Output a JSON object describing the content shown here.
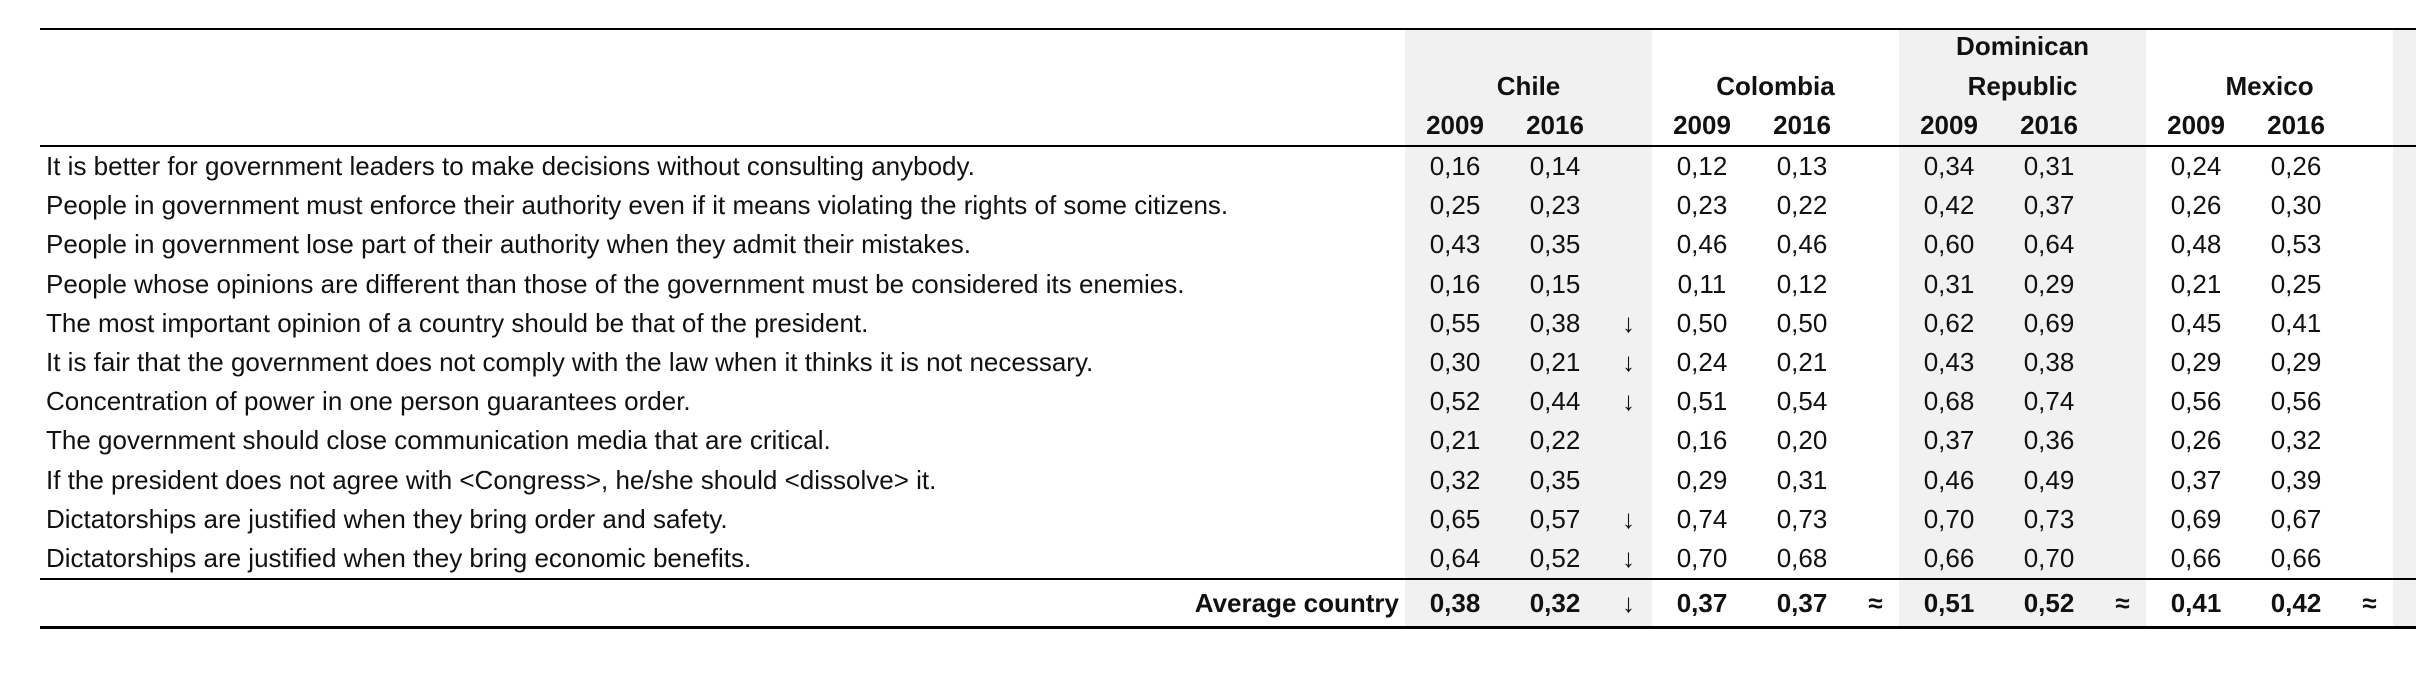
{
  "countries": {
    "chile": "Chile",
    "colombia": "Colombia",
    "dr_line1": "Dominican",
    "dr_line2": "Republic",
    "mexico": "Mexico"
  },
  "years": [
    "2009",
    "2016"
  ],
  "rows": [
    {
      "label": "It is better for government leaders to make decisions without consulting anybody.",
      "chile": [
        "0,16",
        "0,14",
        ""
      ],
      "colombia": [
        "0,12",
        "0,13",
        ""
      ],
      "dominican_republic": [
        "0,34",
        "0,31",
        ""
      ],
      "mexico": [
        "0,24",
        "0,26",
        ""
      ]
    },
    {
      "label": "People in government must enforce their authority even if it means violating the rights of some citizens.",
      "chile": [
        "0,25",
        "0,23",
        ""
      ],
      "colombia": [
        "0,23",
        "0,22",
        ""
      ],
      "dominican_republic": [
        "0,42",
        "0,37",
        ""
      ],
      "mexico": [
        "0,26",
        "0,30",
        ""
      ]
    },
    {
      "label": "People in government lose part of their authority when they admit their mistakes.",
      "chile": [
        "0,43",
        "0,35",
        ""
      ],
      "colombia": [
        "0,46",
        "0,46",
        ""
      ],
      "dominican_republic": [
        "0,60",
        "0,64",
        ""
      ],
      "mexico": [
        "0,48",
        "0,53",
        ""
      ]
    },
    {
      "label": "People whose opinions are different than those of the government must be considered its enemies.",
      "chile": [
        "0,16",
        "0,15",
        ""
      ],
      "colombia": [
        "0,11",
        "0,12",
        ""
      ],
      "dominican_republic": [
        "0,31",
        "0,29",
        ""
      ],
      "mexico": [
        "0,21",
        "0,25",
        ""
      ]
    },
    {
      "label": "The most important opinion of a country should be that of the president.",
      "chile": [
        "0,55",
        "0,38",
        "↓"
      ],
      "colombia": [
        "0,50",
        "0,50",
        ""
      ],
      "dominican_republic": [
        "0,62",
        "0,69",
        ""
      ],
      "mexico": [
        "0,45",
        "0,41",
        ""
      ]
    },
    {
      "label": "It is fair that the government does not comply with the law when it thinks it is not necessary.",
      "chile": [
        "0,30",
        "0,21",
        "↓"
      ],
      "colombia": [
        "0,24",
        "0,21",
        ""
      ],
      "dominican_republic": [
        "0,43",
        "0,38",
        ""
      ],
      "mexico": [
        "0,29",
        "0,29",
        ""
      ]
    },
    {
      "label": "Concentration of power in one person guarantees order.",
      "chile": [
        "0,52",
        "0,44",
        "↓"
      ],
      "colombia": [
        "0,51",
        "0,54",
        ""
      ],
      "dominican_republic": [
        "0,68",
        "0,74",
        ""
      ],
      "mexico": [
        "0,56",
        "0,56",
        ""
      ]
    },
    {
      "label": "The government should close communication media that are critical.",
      "chile": [
        "0,21",
        "0,22",
        ""
      ],
      "colombia": [
        "0,16",
        "0,20",
        ""
      ],
      "dominican_republic": [
        "0,37",
        "0,36",
        ""
      ],
      "mexico": [
        "0,26",
        "0,32",
        ""
      ]
    },
    {
      "label": "If the president does not agree with <Congress>, he/she should <dissolve> it.",
      "chile": [
        "0,32",
        "0,35",
        ""
      ],
      "colombia": [
        "0,29",
        "0,31",
        ""
      ],
      "dominican_republic": [
        "0,46",
        "0,49",
        ""
      ],
      "mexico": [
        "0,37",
        "0,39",
        ""
      ]
    },
    {
      "label": "Dictatorships are justified when they bring order and safety.",
      "chile": [
        "0,65",
        "0,57",
        "↓"
      ],
      "colombia": [
        "0,74",
        "0,73",
        ""
      ],
      "dominican_republic": [
        "0,70",
        "0,73",
        ""
      ],
      "mexico": [
        "0,69",
        "0,67",
        ""
      ]
    },
    {
      "label": "Dictatorships are justified when they bring economic benefits.",
      "chile": [
        "0,64",
        "0,52",
        "↓"
      ],
      "colombia": [
        "0,70",
        "0,68",
        ""
      ],
      "dominican_republic": [
        "0,66",
        "0,70",
        ""
      ],
      "mexico": [
        "0,66",
        "0,66",
        ""
      ]
    }
  ],
  "average": {
    "label": "Average country",
    "chile": [
      "0,38",
      "0,32",
      "↓"
    ],
    "colombia": [
      "0,37",
      "0,37",
      "≈"
    ],
    "dominican_republic": [
      "0,51",
      "0,52",
      "≈"
    ],
    "mexico": [
      "0,41",
      "0,42",
      "≈"
    ]
  }
}
